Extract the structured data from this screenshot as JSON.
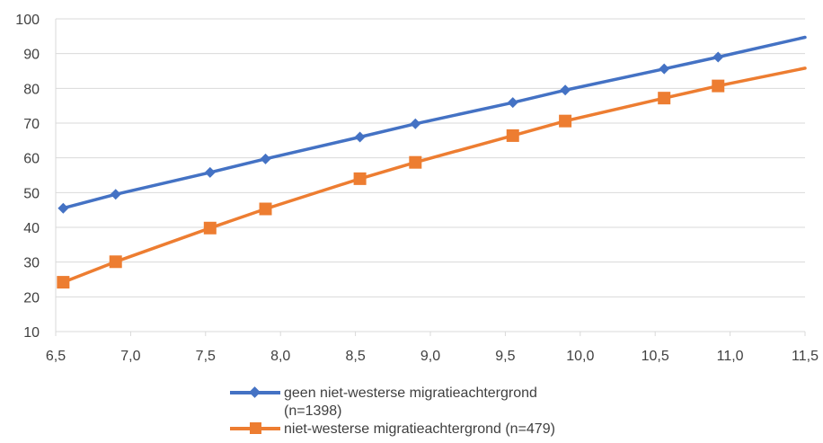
{
  "chart_data": {
    "type": "line",
    "title": "",
    "xlabel": "",
    "ylabel": "",
    "xlim": [
      6.5,
      11.5
    ],
    "ylim": [
      10,
      100
    ],
    "x_ticks": [
      "6,5",
      "7,0",
      "7,5",
      "8,0",
      "8,5",
      "9,0",
      "9,5",
      "10,0",
      "10,5",
      "11,0",
      "11,5"
    ],
    "y_ticks": [
      "10",
      "20",
      "30",
      "40",
      "50",
      "60",
      "70",
      "80",
      "90",
      "100"
    ],
    "grid": "horizontal",
    "legend_position": "bottom",
    "series": [
      {
        "name": "geen niet-westerse migratieachtergrond (n=1398)",
        "name_lines": [
          "geen niet-westerse migratieachtergrond",
          "(n=1398)"
        ],
        "color": "#4472C4",
        "marker": "diamond",
        "x": [
          6.55,
          6.9,
          7.53,
          7.9,
          8.53,
          8.9,
          9.55,
          9.9,
          10.56,
          10.92,
          11.5
        ],
        "y": [
          45.5,
          49.5,
          55.8,
          59.7,
          66.0,
          69.8,
          75.9,
          79.5,
          85.6,
          89.0,
          94.7
        ],
        "marker_count": 10
      },
      {
        "name": "niet-westerse migratieachtergrond (n=479)",
        "name_lines": [
          "niet-westerse migratieachtergrond (n=479)"
        ],
        "color": "#ED7D31",
        "marker": "square",
        "x": [
          6.55,
          6.9,
          7.53,
          7.9,
          8.53,
          8.9,
          9.55,
          9.9,
          10.56,
          10.92,
          11.5
        ],
        "y": [
          24.2,
          30.1,
          39.8,
          45.3,
          54.0,
          58.7,
          66.4,
          70.6,
          77.2,
          80.7,
          85.8
        ],
        "marker_count": 10
      }
    ]
  }
}
